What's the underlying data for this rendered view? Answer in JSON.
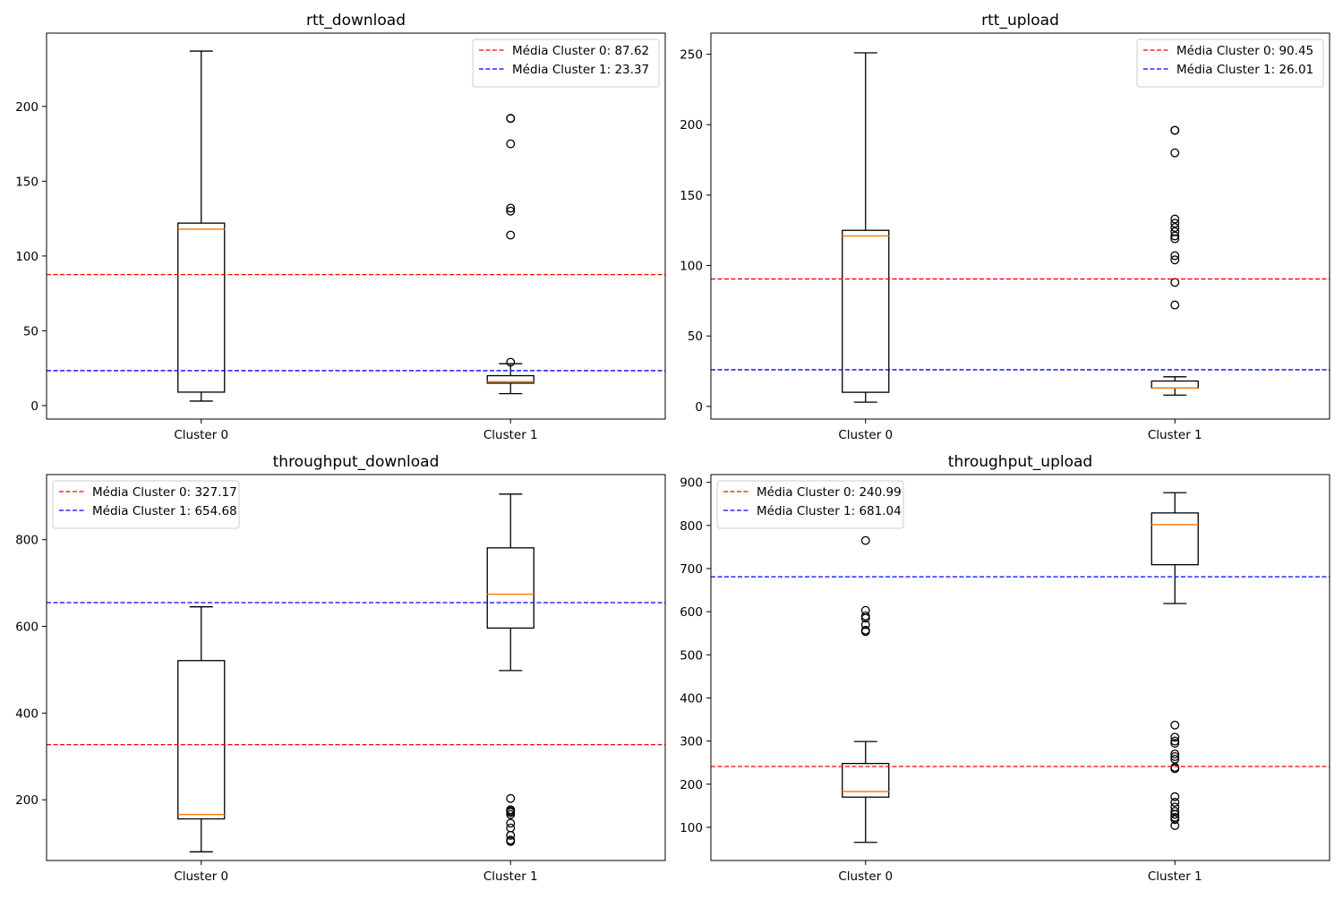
{
  "chart_data": [
    {
      "type": "boxplot",
      "title": "rtt_download",
      "categories": [
        "Cluster 0",
        "Cluster 1"
      ],
      "ylim": [
        -9,
        249
      ],
      "yticks": [
        0,
        50,
        100,
        150,
        200
      ],
      "boxes": [
        {
          "whislo": 3,
          "q1": 9,
          "med": 118,
          "q3": 122,
          "whishi": 237,
          "fliers": []
        },
        {
          "whislo": 8,
          "q1": 15,
          "med": 16,
          "q3": 20,
          "whishi": 28,
          "fliers": [
            29,
            114,
            130,
            132,
            175,
            192,
            192
          ]
        }
      ],
      "legend_position": "upper right",
      "mean_lines": [
        {
          "label": "Média Cluster 0: 87.62",
          "value": 87.62,
          "color": "#ff0000"
        },
        {
          "label": "Média Cluster 1: 23.37",
          "value": 23.37,
          "color": "#0000ff"
        }
      ],
      "grid": false
    },
    {
      "type": "boxplot",
      "title": "rtt_upload",
      "categories": [
        "Cluster 0",
        "Cluster 1"
      ],
      "ylim": [
        -9,
        265
      ],
      "yticks": [
        0,
        50,
        100,
        150,
        200,
        250
      ],
      "boxes": [
        {
          "whislo": 3,
          "q1": 10,
          "med": 121,
          "q3": 125,
          "whishi": 251,
          "fliers": []
        },
        {
          "whislo": 8,
          "q1": 13,
          "med": 13,
          "q3": 18,
          "whishi": 21,
          "fliers": [
            72,
            88,
            104,
            107,
            119,
            121,
            124,
            127,
            130,
            133,
            180,
            196,
            196
          ]
        }
      ],
      "legend_position": "upper right",
      "mean_lines": [
        {
          "label": "Média Cluster 0: 90.45",
          "value": 90.45,
          "color": "#ff0000"
        },
        {
          "label": "Média Cluster 1: 26.01",
          "value": 26.01,
          "color": "#0000ff"
        }
      ],
      "grid": false
    },
    {
      "type": "boxplot",
      "title": "throughput_download",
      "categories": [
        "Cluster 0",
        "Cluster 1"
      ],
      "ylim": [
        60,
        950
      ],
      "yticks": [
        200,
        400,
        600,
        800
      ],
      "boxes": [
        {
          "whislo": 80,
          "q1": 156,
          "med": 166,
          "q3": 521,
          "whishi": 645,
          "fliers": []
        },
        {
          "whislo": 498,
          "q1": 596,
          "med": 674,
          "q3": 781,
          "whishi": 905,
          "fliers": [
            104,
            107,
            118,
            135,
            146,
            166,
            171,
            174,
            177,
            203
          ]
        }
      ],
      "legend_position": "upper left",
      "mean_lines": [
        {
          "label": "Média Cluster 0: 327.17",
          "value": 327.17,
          "color": "#ff0000"
        },
        {
          "label": "Média Cluster 1: 654.68",
          "value": 654.68,
          "color": "#0000ff"
        }
      ],
      "grid": false
    },
    {
      "type": "boxplot",
      "title": "throughput_upload",
      "categories": [
        "Cluster 0",
        "Cluster 1"
      ],
      "ylim": [
        23,
        918
      ],
      "yticks": [
        100,
        200,
        300,
        400,
        500,
        600,
        700,
        800,
        900
      ],
      "boxes": [
        {
          "whislo": 65,
          "q1": 170,
          "med": 183,
          "q3": 248,
          "whishi": 299,
          "fliers": [
            554,
            557,
            570,
            585,
            590,
            603,
            765
          ]
        },
        {
          "whislo": 619,
          "q1": 709,
          "med": 802,
          "q3": 829,
          "whishi": 876,
          "fliers": [
            104,
            118,
            123,
            130,
            137,
            147,
            158,
            171,
            236,
            239,
            258,
            264,
            270,
            295,
            300,
            309,
            337
          ]
        }
      ],
      "legend_position": "upper left",
      "mean_lines": [
        {
          "label": "Média Cluster 0: 240.99",
          "value": 240.99,
          "color": "#ff0000"
        },
        {
          "label": "Média Cluster 1: 681.04",
          "value": 681.04,
          "color": "#0000ff"
        }
      ],
      "grid": false
    }
  ],
  "colors": {
    "box": "#000000",
    "median": "#ff7f0e",
    "mean_cluster_0": "#ff0000",
    "mean_cluster_1": "#0000ff"
  }
}
